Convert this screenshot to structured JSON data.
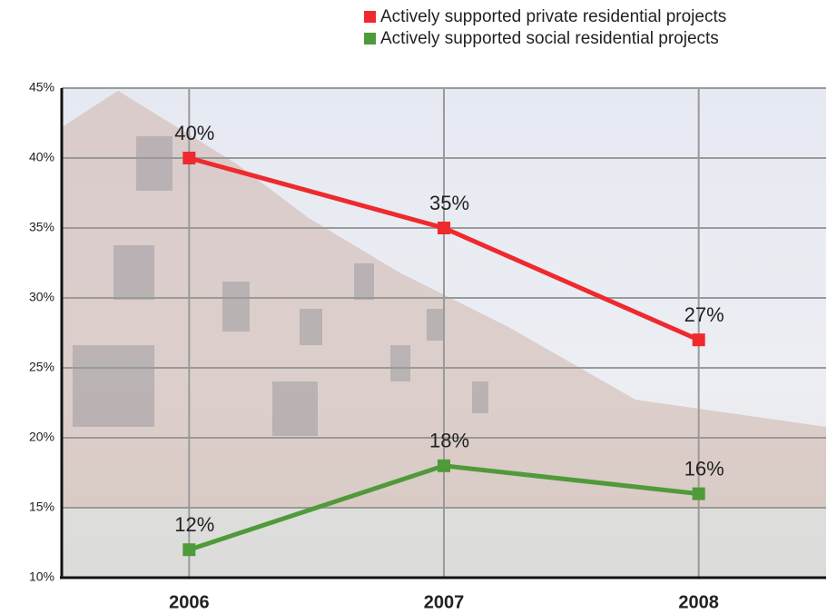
{
  "chart_data": {
    "type": "line",
    "categories": [
      "2006",
      "2007",
      "2008"
    ],
    "series": [
      {
        "name": "Actively supported private residential projects",
        "color": "#ee2a2e",
        "values": [
          40,
          35,
          27
        ],
        "value_labels": [
          "40%",
          "35%",
          "27%"
        ]
      },
      {
        "name": "Actively supported social residential projects",
        "color": "#4f9a3a",
        "values": [
          12,
          18,
          16
        ],
        "value_labels": [
          "12%",
          "18%",
          "16%"
        ]
      }
    ],
    "ylim": [
      10,
      45
    ],
    "yticks": [
      {
        "value": 10,
        "label": "10%"
      },
      {
        "value": 15,
        "label": "15%"
      },
      {
        "value": 20,
        "label": "20%"
      },
      {
        "value": 25,
        "label": "25%"
      },
      {
        "value": 30,
        "label": "30%"
      },
      {
        "value": 35,
        "label": "35%"
      },
      {
        "value": 40,
        "label": "40%"
      },
      {
        "value": 45,
        "label": "45%"
      }
    ],
    "grid": true,
    "legend": "top-right"
  }
}
